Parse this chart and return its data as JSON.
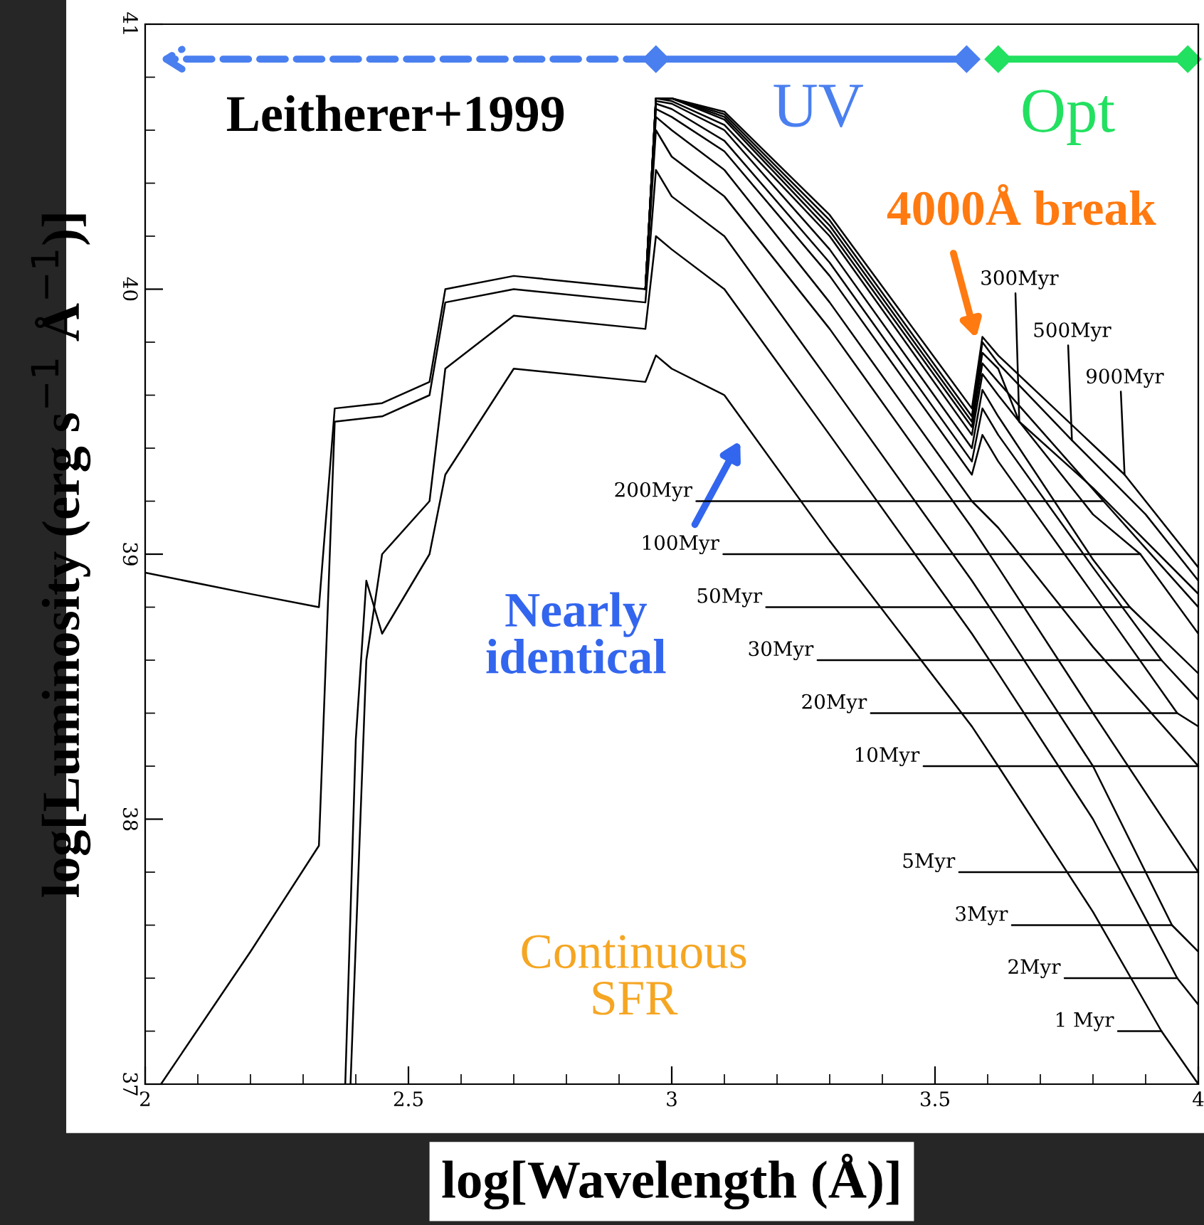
{
  "chart_data": {
    "type": "line",
    "xlabel": "log[Wavelength (Å)]",
    "ylabel": "log[Luminosity (erg s$^{−1}$ Å$^{−1}$)]",
    "xlim": [
      2,
      4
    ],
    "ylim": [
      37,
      41
    ],
    "xticks": [
      2,
      2.5,
      3,
      3.5,
      4
    ],
    "yticks": [
      37,
      38,
      39,
      40,
      41
    ],
    "grid": false,
    "marker": "none",
    "line_style": "solid",
    "series": [
      {
        "color": "#000000",
        "x": [
          2.38,
          2.4,
          2.42,
          2.45,
          2.54,
          2.57,
          2.7,
          2.95,
          2.97,
          3.0,
          3.1,
          3.3,
          3.57,
          3.62,
          3.8,
          3.93,
          4.0
        ],
        "values": [
          37.0,
          38.3,
          38.9,
          38.7,
          39.0,
          39.3,
          39.7,
          39.65,
          39.75,
          39.7,
          39.6,
          39.05,
          38.35,
          38.2,
          37.65,
          37.2,
          37.0
        ]
      },
      {
        "color": "#000000",
        "x": [
          2.39,
          2.42,
          2.45,
          2.54,
          2.57,
          2.7,
          2.95,
          2.97,
          3.0,
          3.1,
          3.3,
          3.57,
          3.62,
          3.8,
          3.96,
          4.0
        ],
        "values": [
          37.0,
          38.6,
          39.0,
          39.2,
          39.7,
          39.9,
          39.85,
          40.2,
          40.15,
          40.0,
          39.45,
          38.7,
          38.55,
          38.0,
          37.4,
          37.3
        ]
      },
      {
        "color": "#000000",
        "x": [
          2.03,
          2.2,
          2.33,
          2.36,
          2.45,
          2.54,
          2.57,
          2.7,
          2.95,
          2.97,
          3.0,
          3.1,
          3.3,
          3.57,
          3.62,
          3.8,
          3.95,
          4.0
        ],
        "values": [
          37.0,
          37.5,
          37.9,
          39.5,
          39.52,
          39.6,
          39.95,
          40.0,
          39.95,
          40.45,
          40.35,
          40.2,
          39.65,
          38.9,
          38.75,
          38.2,
          37.6,
          37.5
        ]
      },
      {
        "color": "#000000",
        "x": [
          2.0,
          2.2,
          2.33,
          2.36,
          2.45,
          2.54,
          2.57,
          2.7,
          2.95,
          2.97,
          3.0,
          3.1,
          3.3,
          3.57,
          3.62,
          3.8,
          4.0
        ],
        "values": [
          38.93,
          38.85,
          38.8,
          39.55,
          39.57,
          39.65,
          40.0,
          40.05,
          40.0,
          40.6,
          40.5,
          40.35,
          39.85,
          39.1,
          38.95,
          38.4,
          37.8
        ]
      },
      {
        "color": "#000000",
        "x": [
          2.95,
          2.97,
          3.0,
          3.1,
          3.3,
          3.57,
          3.62,
          3.8,
          4.0
        ],
        "values": [
          40.0,
          40.65,
          40.6,
          40.45,
          39.95,
          39.2,
          39.1,
          38.65,
          38.2
        ]
      },
      {
        "color": "#000000",
        "x": [
          2.95,
          2.97,
          3.0,
          3.1,
          3.3,
          3.57,
          3.59,
          3.62,
          3.8,
          3.96,
          4.0
        ],
        "values": [
          40.0,
          40.68,
          40.65,
          40.52,
          40.05,
          39.3,
          39.45,
          39.35,
          38.85,
          38.4,
          38.35
        ]
      },
      {
        "color": "#000000",
        "x": [
          2.95,
          2.97,
          3.0,
          3.1,
          3.3,
          3.57,
          3.59,
          3.62,
          3.8,
          3.93,
          4.0
        ],
        "values": [
          40.0,
          40.7,
          40.68,
          40.56,
          40.1,
          39.35,
          39.55,
          39.45,
          38.95,
          38.6,
          38.45
        ]
      },
      {
        "color": "#000000",
        "x": [
          2.95,
          2.97,
          3.0,
          3.1,
          3.3,
          3.57,
          3.59,
          3.62,
          3.8,
          3.87,
          4.0
        ],
        "values": [
          40.0,
          40.71,
          40.7,
          40.6,
          40.15,
          39.4,
          39.62,
          39.52,
          38.98,
          38.8,
          38.55
        ]
      },
      {
        "color": "#000000",
        "x": [
          2.95,
          2.97,
          3.0,
          3.1,
          3.3,
          3.57,
          3.59,
          3.62,
          3.8,
          3.89,
          4.0
        ],
        "values": [
          40.0,
          40.72,
          40.71,
          40.62,
          40.2,
          39.45,
          39.68,
          39.6,
          39.15,
          39.0,
          38.7
        ]
      },
      {
        "color": "#000000",
        "x": [
          2.95,
          2.97,
          3.0,
          3.1,
          3.3,
          3.57,
          3.59,
          3.62,
          3.82,
          4.0
        ],
        "values": [
          40.0,
          40.72,
          40.72,
          40.64,
          40.22,
          39.48,
          39.72,
          39.65,
          39.2,
          38.8
        ]
      },
      {
        "color": "#000000",
        "x": [
          2.95,
          2.97,
          3.0,
          3.1,
          3.3,
          3.57,
          3.59,
          3.62,
          3.66,
          3.8,
          4.0
        ],
        "values": [
          40.0,
          40.72,
          40.72,
          40.65,
          40.24,
          39.5,
          39.76,
          39.7,
          39.5,
          39.25,
          38.85
        ]
      },
      {
        "color": "#000000",
        "x": [
          2.95,
          2.97,
          3.0,
          3.1,
          3.3,
          3.57,
          3.59,
          3.62,
          3.76,
          3.9,
          4.0
        ],
        "values": [
          40.0,
          40.72,
          40.72,
          40.66,
          40.26,
          39.52,
          39.8,
          39.72,
          39.43,
          39.15,
          38.9
        ]
      },
      {
        "color": "#000000",
        "x": [
          2.95,
          2.97,
          3.0,
          3.1,
          3.3,
          3.57,
          3.59,
          3.62,
          3.86,
          4.0
        ],
        "values": [
          40.0,
          40.72,
          40.72,
          40.67,
          40.28,
          39.55,
          39.82,
          39.75,
          39.3,
          38.95
        ]
      }
    ],
    "annotations": [
      "Leitherer+1999",
      "UV",
      "Opt",
      {
        "text": "4000Å break",
        "x": 3.58,
        "y": 39.8
      },
      "Nearly\nidentical",
      "Continuous\nSFR",
      {
        "text": "200Myr",
        "x": 3.82,
        "y": 39.2
      },
      {
        "text": "100Myr",
        "x": 3.89,
        "y": 39.0
      },
      {
        "text": "50Myr",
        "x": 3.87,
        "y": 38.8
      },
      {
        "text": "30Myr",
        "x": 3.93,
        "y": 38.6
      },
      {
        "text": "20Myr",
        "x": 3.96,
        "y": 38.4
      },
      {
        "text": "10Myr",
        "x": 4.0,
        "y": 38.2
      },
      {
        "text": "5Myr",
        "x": 4.0,
        "y": 37.8
      },
      {
        "text": "3Myr",
        "x": 3.95,
        "y": 37.6
      },
      {
        "text": "2Myr",
        "x": 3.96,
        "y": 37.4
      },
      {
        "text": "1 Myr",
        "x": 3.93,
        "y": 37.2
      },
      {
        "text": "300Myr",
        "x": 3.66,
        "y": 39.5
      },
      {
        "text": "500Myr",
        "x": 3.76,
        "y": 39.43
      },
      {
        "text": "900Myr",
        "x": 3.86,
        "y": 39.3
      }
    ]
  }
}
